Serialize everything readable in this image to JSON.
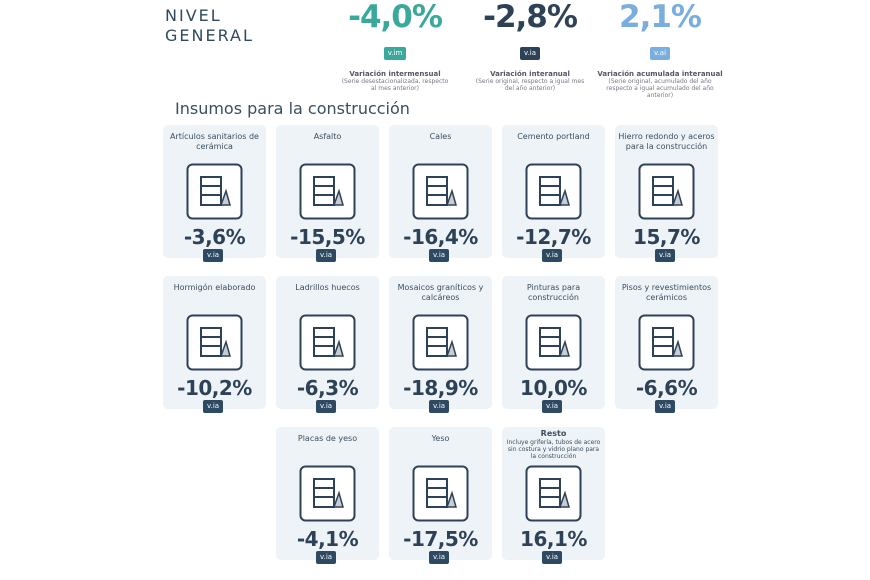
{
  "header": {
    "title_lines": [
      "NIVEL",
      "GENERAL"
    ],
    "indicators": [
      {
        "value": "-4,0%",
        "badge": "v.im",
        "caption": "Variación intermensual",
        "note": "(Serie desestacionalizada, respecto al mes anterior)",
        "color": "#3aa89b"
      },
      {
        "value": "-2,8%",
        "badge": "v.ia",
        "caption": "Variación interanual",
        "note": "(Serie original, respecto a igual mes del año anterior)",
        "color": "#2e4257"
      },
      {
        "value": "2,1%",
        "badge": "v.ai",
        "caption": "Variación acumulada interanual",
        "note": "(Serie original, acumulado del año respecto a igual acumulado del año anterior)",
        "color": "#7aaede"
      }
    ]
  },
  "section_title": "Insumos para la construcción",
  "cards": [
    {
      "title": "Artículos sanitarios de cerámica",
      "value": "-3,6%",
      "badge": "v.ia"
    },
    {
      "title": "Asfalto",
      "value": "-15,5%",
      "badge": "v.ia"
    },
    {
      "title": "Cales",
      "value": "-16,4%",
      "badge": "v.ia"
    },
    {
      "title": "Cemento portland",
      "value": "-12,7%",
      "badge": "v.ia"
    },
    {
      "title": "Hierro redondo y aceros para la construcción",
      "value": "15,7%",
      "badge": "v.ia"
    },
    {
      "title": "Hormigón elaborado",
      "value": "-10,2%",
      "badge": "v.ia"
    },
    {
      "title": "Ladrillos huecos",
      "value": "-6,3%",
      "badge": "v.ia"
    },
    {
      "title": "Mosaicos graníticos y calcáreos",
      "value": "-18,9%",
      "badge": "v.ia"
    },
    {
      "title": "Pinturas para construcción",
      "value": "10,0%",
      "badge": "v.ia"
    },
    {
      "title": "Pisos y revestimientos cerámicos",
      "value": "-6,6%",
      "badge": "v.ia"
    },
    {
      "title": "Placas de yeso",
      "value": "-4,1%",
      "badge": "v.ia"
    },
    {
      "title": "Yeso",
      "value": "-17,5%",
      "badge": "v.ia"
    },
    {
      "title": "Resto",
      "subtitle": "Incluye grifería, tubos de acero sin costura y vidrio plano para la construcción",
      "value": "16,1%",
      "badge": "v.ia"
    }
  ]
}
